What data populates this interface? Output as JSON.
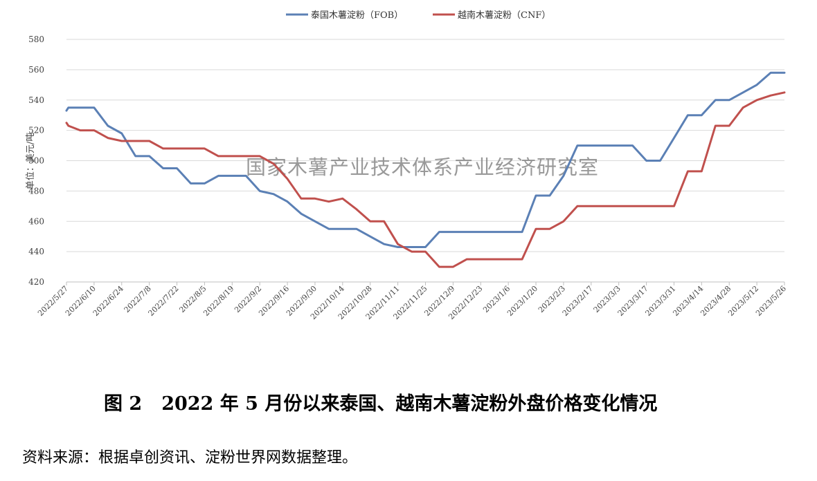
{
  "chart_data": {
    "type": "line",
    "ylabel": "单位：美元/吨",
    "ylim": [
      420,
      580
    ],
    "yticks": [
      420,
      440,
      460,
      480,
      500,
      520,
      540,
      560,
      580
    ],
    "grid": "horizontal",
    "legend_position": "top-center",
    "x_labels": [
      "2022/5/27",
      "2022/6/10",
      "2022/6/24",
      "2022/7/8",
      "2022/7/22",
      "2022/8/5",
      "2022/8/19",
      "2022/9/2",
      "2022/9/16",
      "2022/9/30",
      "2022/10/14",
      "2022/10/28",
      "2022/11/11",
      "2022/11/25",
      "2022/12/9",
      "2022/12/23",
      "2023/1/6",
      "2023/1/20",
      "2023/2/3",
      "2023/2/17",
      "2023/3/3",
      "2023/3/17",
      "2023/3/31",
      "2023/4/14",
      "2023/4/28",
      "2023/5/12",
      "2023/5/26"
    ],
    "x_dates": [
      "2022-05-27",
      "2022-05-28",
      "2022-06-03",
      "2022-06-10",
      "2022-06-17",
      "2022-06-24",
      "2022-07-01",
      "2022-07-08",
      "2022-07-15",
      "2022-07-22",
      "2022-07-29",
      "2022-08-05",
      "2022-08-12",
      "2022-08-19",
      "2022-08-26",
      "2022-09-02",
      "2022-09-09",
      "2022-09-16",
      "2022-09-23",
      "2022-09-30",
      "2022-10-07",
      "2022-10-14",
      "2022-10-21",
      "2022-10-28",
      "2022-11-04",
      "2022-11-11",
      "2022-11-18",
      "2022-11-25",
      "2022-12-02",
      "2022-12-09",
      "2022-12-16",
      "2022-12-23",
      "2022-12-30",
      "2023-01-06",
      "2023-01-13",
      "2023-01-20",
      "2023-01-27",
      "2023-02-03",
      "2023-02-10",
      "2023-02-17",
      "2023-02-24",
      "2023-03-03",
      "2023-03-10",
      "2023-03-17",
      "2023-03-24",
      "2023-03-31",
      "2023-04-07",
      "2023-04-14",
      "2023-04-21",
      "2023-04-28",
      "2023-05-05",
      "2023-05-12",
      "2023-05-19",
      "2023-05-26"
    ],
    "series": [
      {
        "name": "泰国木薯淀粉（FOB）",
        "color": "#5b80b5",
        "values": [
          533,
          535,
          535,
          535,
          523,
          518,
          503,
          503,
          495,
          495,
          485,
          485,
          490,
          490,
          490,
          480,
          478,
          473,
          465,
          460,
          455,
          455,
          455,
          450,
          445,
          443,
          443,
          443,
          453,
          453,
          453,
          453,
          453,
          453,
          453,
          477,
          477,
          490,
          510,
          510,
          510,
          510,
          510,
          500,
          500,
          515,
          530,
          530,
          540,
          540,
          545,
          550,
          558,
          558
        ]
      },
      {
        "name": "越南木薯淀粉（CNF）",
        "color": "#c0504d",
        "values": [
          525,
          523,
          520,
          520,
          515,
          513,
          513,
          513,
          508,
          508,
          508,
          508,
          503,
          503,
          503,
          503,
          498,
          488,
          475,
          475,
          473,
          475,
          468,
          460,
          460,
          445,
          440,
          440,
          430,
          430,
          435,
          435,
          435,
          435,
          435,
          455,
          455,
          460,
          470,
          470,
          470,
          470,
          470,
          470,
          470,
          470,
          493,
          493,
          523,
          523,
          535,
          540,
          543,
          545
        ]
      }
    ]
  },
  "watermark": "国家木薯产业技术体系产业经济研究室",
  "caption": {
    "figure_no": "图 2",
    "title": "2022 年 5 月份以来泰国、越南木薯淀粉外盘价格变化情况"
  },
  "source_note": "资料来源：根据卓创资讯、淀粉世界网数据整理。"
}
